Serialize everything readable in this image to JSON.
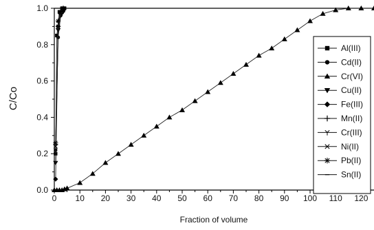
{
  "chart_data": {
    "type": "line",
    "xlabel": "Fraction of volume",
    "ylabel": "C/Co",
    "xlim": [
      0,
      125
    ],
    "ylim": [
      0,
      1.0
    ],
    "x_ticks": [
      0,
      10,
      20,
      30,
      40,
      50,
      60,
      70,
      80,
      90,
      100,
      110,
      120
    ],
    "y_ticks": [
      0.0,
      0.2,
      0.4,
      0.6,
      0.8,
      1.0
    ],
    "x_tick_labels": [
      "0",
      "10",
      "20",
      "30",
      "40",
      "50",
      "60",
      "70",
      "80",
      "90",
      "100",
      "110",
      "120"
    ],
    "y_tick_labels": [
      "0.0",
      "0.2",
      "0.4",
      "0.6",
      "0.8",
      "1.0"
    ],
    "grid": false,
    "legend_position": "right",
    "series": [
      {
        "name": "Al(III)",
        "marker": "square",
        "x": [
          0.5,
          1,
          2,
          3,
          4
        ],
        "y": [
          0.2,
          0.85,
          0.98,
          1.0,
          1.0
        ]
      },
      {
        "name": "Cd(II)",
        "marker": "circle",
        "x": [
          0.5,
          1.5,
          2.5,
          3.5
        ],
        "y": [
          0.22,
          0.84,
          0.96,
          0.99
        ]
      },
      {
        "name": "Cr(VI)",
        "marker": "triangle-up",
        "x": [
          0,
          1,
          2,
          3,
          4,
          5,
          10,
          15,
          20,
          25,
          30,
          35,
          40,
          45,
          50,
          55,
          60,
          65,
          70,
          75,
          80,
          85,
          90,
          95,
          100,
          105,
          110,
          115,
          120,
          125
        ],
        "y": [
          0,
          0,
          0,
          0,
          0.005,
          0.01,
          0.04,
          0.09,
          0.15,
          0.2,
          0.25,
          0.3,
          0.35,
          0.4,
          0.44,
          0.49,
          0.54,
          0.59,
          0.64,
          0.69,
          0.74,
          0.78,
          0.83,
          0.88,
          0.93,
          0.97,
          0.99,
          1.0,
          1.0,
          1.0
        ]
      },
      {
        "name": "Cu(II)",
        "marker": "triangle-down",
        "x": [
          0.5,
          1.5,
          2.5,
          3.5
        ],
        "y": [
          0.15,
          0.88,
          0.96,
          0.98
        ]
      },
      {
        "name": "Fe(III)",
        "marker": "diamond",
        "x": [
          0.5,
          1.5,
          2.5,
          3.5
        ],
        "y": [
          0.06,
          0.9,
          0.97,
          0.99
        ]
      },
      {
        "name": "Mn(II)",
        "marker": "plus",
        "x": [
          0.5,
          1.5,
          2.5,
          3.5
        ],
        "y": [
          0.25,
          0.9,
          0.98,
          1.0
        ]
      },
      {
        "name": "Cr(III)",
        "marker": "tri-down",
        "x": [
          0.5,
          1.5,
          2.5,
          3.5
        ],
        "y": [
          0.22,
          0.92,
          0.97,
          0.99
        ]
      },
      {
        "name": "Ni(II)",
        "marker": "x",
        "x": [
          0.5,
          1.5,
          2.5,
          3.5
        ],
        "y": [
          0.24,
          0.9,
          0.97,
          0.99
        ]
      },
      {
        "name": "Pb(II)",
        "marker": "star",
        "x": [
          0.5,
          1.5,
          2.5,
          3.5
        ],
        "y": [
          0.26,
          0.93,
          0.98,
          1.0
        ]
      },
      {
        "name": "Sn(II)",
        "marker": "dash",
        "x": [
          0.5,
          1.5,
          2.5,
          3.5
        ],
        "y": [
          0.2,
          0.9,
          0.97,
          0.98
        ]
      }
    ]
  }
}
